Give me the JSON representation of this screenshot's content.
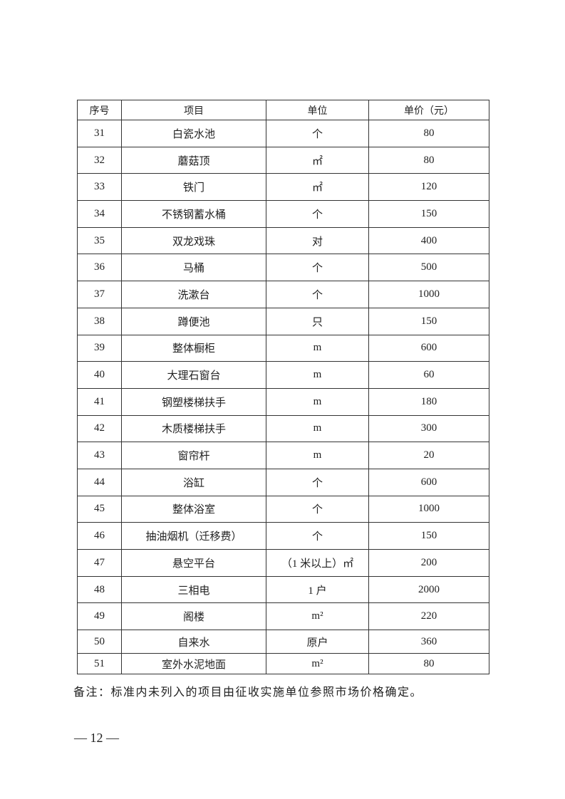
{
  "table": {
    "headers": [
      "序号",
      "项目",
      "单位",
      "单价（元）"
    ],
    "rows": [
      [
        "31",
        "白瓷水池",
        "个",
        "80"
      ],
      [
        "32",
        "蘑菇顶",
        "㎡",
        "80"
      ],
      [
        "33",
        "铁门",
        "㎡",
        "120"
      ],
      [
        "34",
        "不锈钢蓄水桶",
        "个",
        "150"
      ],
      [
        "35",
        "双龙戏珠",
        "对",
        "400"
      ],
      [
        "36",
        "马桶",
        "个",
        "500"
      ],
      [
        "37",
        "洗漱台",
        "个",
        "1000"
      ],
      [
        "38",
        "蹲便池",
        "只",
        "150"
      ],
      [
        "39",
        "整体橱柜",
        "m",
        "600"
      ],
      [
        "40",
        "大理石窗台",
        "m",
        "60"
      ],
      [
        "41",
        "钢塑楼梯扶手",
        "m",
        "180"
      ],
      [
        "42",
        "木质楼梯扶手",
        "m",
        "300"
      ],
      [
        "43",
        "窗帘杆",
        "m",
        "20"
      ],
      [
        "44",
        "浴缸",
        "个",
        "600"
      ],
      [
        "45",
        "整体浴室",
        "个",
        "1000"
      ],
      [
        "46",
        "抽油烟机（迁移费）",
        "个",
        "150"
      ],
      [
        "47",
        "悬空平台",
        "（1 米以上）㎡",
        "200"
      ],
      [
        "48",
        "三相电",
        "1 户",
        "2000"
      ],
      [
        "49",
        "阁楼",
        "m²",
        "220"
      ],
      [
        "50",
        "自来水",
        "原户",
        "360"
      ],
      [
        "51",
        "室外水泥地面",
        "m²",
        "80"
      ]
    ]
  },
  "note": "备注：标准内未列入的项目由征收实施单位参照市场价格确定。",
  "page_number": "— 12 —"
}
